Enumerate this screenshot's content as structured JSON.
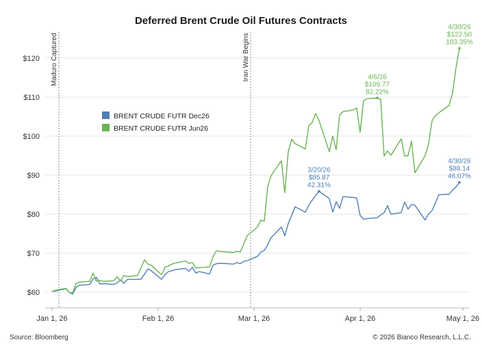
{
  "chart_data": {
    "type": "line",
    "title": "Deferred Brent Crude Oil Futures Contracts",
    "ylim": [
      56,
      127
    ],
    "xlim": [
      "2025-12-30",
      "2026-05-03"
    ],
    "y_ticks": [
      60,
      70,
      80,
      90,
      100,
      110,
      120
    ],
    "y_tick_labels": [
      "$60",
      "$70",
      "$80",
      "$90",
      "$100",
      "$110",
      "$120"
    ],
    "x_ticks": [
      "2026-01-01",
      "2026-02-01",
      "2026-03-01",
      "2026-04-01",
      "2026-05-01"
    ],
    "x_tick_labels": [
      "Jan 1, 26",
      "Feb 1, 26",
      "Mar 1, 26",
      "Apr 1, 26",
      "May 1, 26"
    ],
    "legend_position": "upper-left",
    "colors": {
      "dec26": "#4f7eb3",
      "jun26": "#6ab253",
      "vline": "#888888"
    },
    "series": [
      {
        "name": "BRENT CRUDE FUTR Dec26",
        "color": "#4f7eb3",
        "x": [
          "2026-01-01",
          "2026-01-02",
          "2026-01-05",
          "2026-01-06",
          "2026-01-07",
          "2026-01-08",
          "2026-01-09",
          "2026-01-12",
          "2026-01-13",
          "2026-01-14",
          "2026-01-15",
          "2026-01-16",
          "2026-01-19",
          "2026-01-20",
          "2026-01-21",
          "2026-01-22",
          "2026-01-23",
          "2026-01-26",
          "2026-01-27",
          "2026-01-28",
          "2026-01-29",
          "2026-01-30",
          "2026-02-02",
          "2026-02-03",
          "2026-02-04",
          "2026-02-05",
          "2026-02-06",
          "2026-02-09",
          "2026-02-10",
          "2026-02-11",
          "2026-02-12",
          "2026-02-13",
          "2026-02-16",
          "2026-02-17",
          "2026-02-18",
          "2026-02-19",
          "2026-02-20",
          "2026-02-23",
          "2026-02-24",
          "2026-02-25",
          "2026-02-26",
          "2026-02-27",
          "2026-03-02",
          "2026-03-03",
          "2026-03-04",
          "2026-03-05",
          "2026-03-06",
          "2026-03-09",
          "2026-03-10",
          "2026-03-11",
          "2026-03-12",
          "2026-03-13",
          "2026-03-16",
          "2026-03-17",
          "2026-03-18",
          "2026-03-19",
          "2026-03-20",
          "2026-03-23",
          "2026-03-24",
          "2026-03-25",
          "2026-03-26",
          "2026-03-27",
          "2026-03-30",
          "2026-03-31",
          "2026-04-01",
          "2026-04-02",
          "2026-04-03",
          "2026-04-06",
          "2026-04-07",
          "2026-04-08",
          "2026-04-09",
          "2026-04-10",
          "2026-04-13",
          "2026-04-14",
          "2026-04-15",
          "2026-04-16",
          "2026-04-17",
          "2026-04-20",
          "2026-04-21",
          "2026-04-22",
          "2026-04-23",
          "2026-04-24",
          "2026-04-27",
          "2026-04-28",
          "2026-04-29",
          "2026-04-30"
        ],
        "values": [
          60.2,
          60.3,
          60.9,
          60.0,
          59.5,
          61.2,
          61.8,
          62.0,
          63.4,
          63.8,
          62.1,
          62.2,
          62.0,
          62.4,
          63.1,
          62.3,
          63.3,
          63.3,
          63.4,
          64.6,
          66.0,
          65.5,
          63.3,
          64.5,
          65.3,
          65.5,
          65.8,
          66.1,
          65.4,
          66.4,
          64.9,
          65.3,
          64.7,
          66.9,
          67.3,
          67.4,
          67.4,
          67.2,
          67.6,
          67.3,
          67.9,
          68.1,
          69.2,
          70.3,
          70.7,
          72.2,
          74.0,
          76.7,
          74.5,
          77.6,
          79.7,
          81.9,
          80.5,
          82.3,
          83.6,
          84.8,
          85.87,
          84.0,
          80.5,
          83.2,
          81.5,
          84.5,
          84.3,
          84.1,
          79.7,
          78.7,
          78.9,
          79.1,
          79.8,
          80.4,
          82.2,
          80.0,
          80.4,
          83.1,
          81.3,
          82.5,
          82.3,
          78.5,
          80.1,
          80.9,
          82.9,
          85.0,
          85.1,
          86.2,
          87.0,
          88.14
        ]
      },
      {
        "name": "BRENT CRUDE FUTR Jun26",
        "color": "#6ab253",
        "x": [
          "2026-01-01",
          "2026-01-02",
          "2026-01-05",
          "2026-01-06",
          "2026-01-07",
          "2026-01-08",
          "2026-01-09",
          "2026-01-12",
          "2026-01-13",
          "2026-01-14",
          "2026-01-15",
          "2026-01-16",
          "2026-01-19",
          "2026-01-20",
          "2026-01-21",
          "2026-01-22",
          "2026-01-23",
          "2026-01-26",
          "2026-01-27",
          "2026-01-28",
          "2026-01-29",
          "2026-01-30",
          "2026-02-02",
          "2026-02-03",
          "2026-02-04",
          "2026-02-05",
          "2026-02-06",
          "2026-02-09",
          "2026-02-10",
          "2026-02-11",
          "2026-02-12",
          "2026-02-13",
          "2026-02-16",
          "2026-02-17",
          "2026-02-18",
          "2026-02-19",
          "2026-02-20",
          "2026-02-23",
          "2026-02-24",
          "2026-02-25",
          "2026-02-26",
          "2026-02-27",
          "2026-03-02",
          "2026-03-03",
          "2026-03-04",
          "2026-03-05",
          "2026-03-06",
          "2026-03-09",
          "2026-03-10",
          "2026-03-11",
          "2026-03-12",
          "2026-03-13",
          "2026-03-16",
          "2026-03-17",
          "2026-03-18",
          "2026-03-19",
          "2026-03-20",
          "2026-03-23",
          "2026-03-24",
          "2026-03-25",
          "2026-03-26",
          "2026-03-27",
          "2026-03-30",
          "2026-03-31",
          "2026-04-01",
          "2026-04-02",
          "2026-04-03",
          "2026-04-06",
          "2026-04-07",
          "2026-04-08",
          "2026-04-09",
          "2026-04-10",
          "2026-04-13",
          "2026-04-14",
          "2026-04-15",
          "2026-04-16",
          "2026-04-17",
          "2026-04-20",
          "2026-04-21",
          "2026-04-22",
          "2026-04-23",
          "2026-04-24",
          "2026-04-27",
          "2026-04-28",
          "2026-04-29",
          "2026-04-30"
        ],
        "values": [
          60.2,
          60.5,
          61.0,
          60.0,
          59.8,
          62.2,
          62.6,
          62.8,
          64.9,
          62.8,
          63.0,
          62.8,
          62.9,
          64.0,
          62.9,
          64.3,
          64.0,
          64.3,
          66.3,
          68.3,
          67.2,
          66.9,
          64.5,
          66.4,
          66.7,
          67.2,
          67.5,
          68.0,
          67.4,
          67.6,
          66.2,
          66.3,
          66.5,
          69.1,
          70.6,
          70.5,
          70.4,
          70.2,
          70.5,
          70.3,
          72.4,
          74.5,
          76.7,
          78.5,
          78.2,
          87.0,
          89.9,
          93.7,
          85.5,
          96.0,
          99.2,
          98.1,
          96.7,
          102.7,
          103.5,
          105.8,
          104.0,
          96.0,
          100.0,
          96.5,
          105.4,
          106.3,
          106.7,
          107.2,
          101.0,
          109.1,
          109.6,
          109.77,
          109.5,
          94.9,
          96.2,
          95.1,
          99.3,
          94.9,
          95.0,
          98.7,
          90.6,
          95.0,
          98.0,
          103.9,
          105.3,
          106.0,
          107.9,
          111.0,
          117.5,
          122.5
        ]
      }
    ],
    "vlines": [
      {
        "x": "2026-01-03",
        "label": "Maduro Captured"
      },
      {
        "x": "2026-02-28",
        "label": "Iran War Begins"
      }
    ],
    "annotations": [
      {
        "series": 0,
        "x": "2026-03-20",
        "lines": [
          "3/20/26",
          "$85.87",
          "42.31%"
        ],
        "color": "#4f7eb3"
      },
      {
        "series": 0,
        "x": "2026-04-30",
        "lines": [
          "4/30/26",
          "$88.14",
          "46.07%"
        ],
        "color": "#4f7eb3"
      },
      {
        "series": 1,
        "x": "2026-04-06",
        "lines": [
          "4/6/26",
          "$109.77",
          "82.22%"
        ],
        "color": "#6ab253"
      },
      {
        "series": 1,
        "x": "2026-04-30",
        "lines": [
          "4/30/26",
          "$122.50",
          "103.35%"
        ],
        "color": "#6ab253"
      }
    ]
  },
  "footer": {
    "source": "Source: Bloomberg",
    "copyright": "© 2026 Bianco Research, L.L.C."
  }
}
